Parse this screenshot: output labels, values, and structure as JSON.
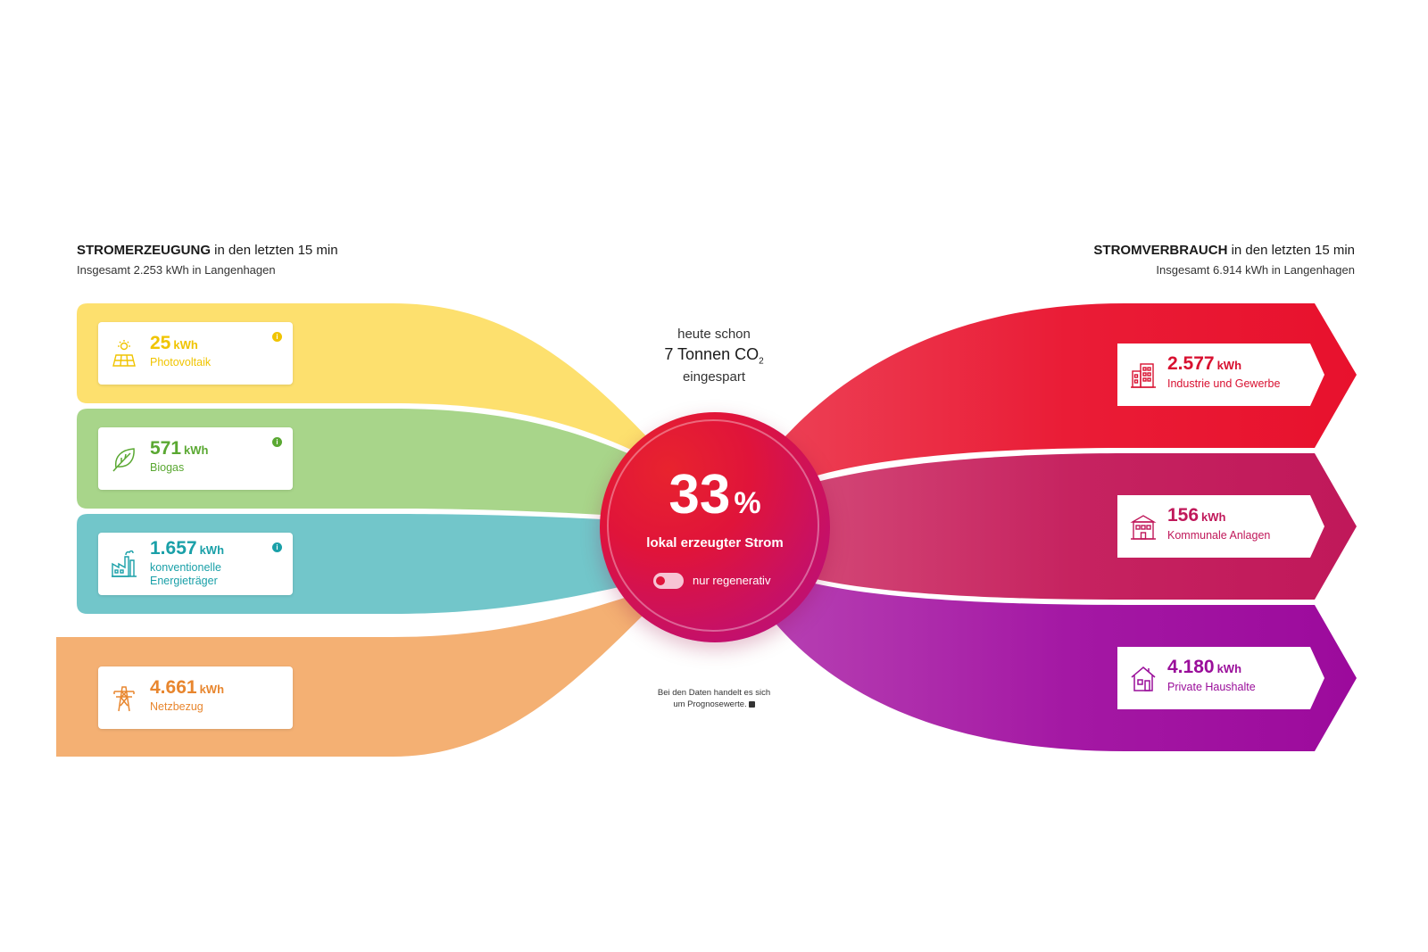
{
  "generation": {
    "title_bold": "STROMERZEUGUNG",
    "title_rest": " in den letzten 15 min",
    "subtitle": "Insgesamt 2.253 kWh in Langenhagen",
    "sources": [
      {
        "value": "25",
        "unit": "kWh",
        "label": "Photovoltaik",
        "color": "#f0c400",
        "icon": "solar-panel-icon",
        "info": "i"
      },
      {
        "value": "571",
        "unit": "kWh",
        "label": "Biogas",
        "color": "#5aa832",
        "icon": "leaf-icon",
        "info": "i"
      },
      {
        "value": "1.657",
        "unit": "kWh",
        "label_line1": "konventionelle",
        "label_line2": "Energieträger",
        "color": "#1aa0a8",
        "icon": "factory-icon",
        "info": "i"
      },
      {
        "value": "4.661",
        "unit": "kWh",
        "label": "Netzbezug",
        "color": "#e8862e",
        "icon": "power-pylon-icon"
      }
    ]
  },
  "consumption": {
    "title_bold": "STROMVERBRAUCH",
    "title_rest": " in den letzten 15 min",
    "subtitle": "Insgesamt 6.914 kWh in Langenhagen",
    "sinks": [
      {
        "value": "2.577",
        "unit": "kWh",
        "label": "Industrie und Gewerbe",
        "color": "#d81030",
        "icon": "office-building-icon"
      },
      {
        "value": "156",
        "unit": "kWh",
        "label": "Kommunale Anlagen",
        "color": "#c0185a",
        "icon": "municipal-building-icon"
      },
      {
        "value": "4.180",
        "unit": "kWh",
        "label": "Private Haushalte",
        "color": "#9a0e9a",
        "icon": "house-icon"
      }
    ]
  },
  "co2": {
    "line1": "heute schon",
    "line2_main": "7 Tonnen CO",
    "line2_sub": "2",
    "line3": "eingespart"
  },
  "center": {
    "percent": "33",
    "percent_symbol": "%",
    "caption": "lokal erzeugter Strom",
    "toggle_label": "nur regenerativ"
  },
  "note": {
    "line1": "Bei den Daten handelt es sich",
    "line2": "um Prognosewerte."
  },
  "colors": {
    "solar_band": "#fde06e",
    "biogas_band": "#a8d58a",
    "conventional_band": "#72c6ca",
    "grid_band": "#f4b073",
    "industry": "#e8112d",
    "municipal": "#c2195e",
    "households": "#a00ca0"
  }
}
